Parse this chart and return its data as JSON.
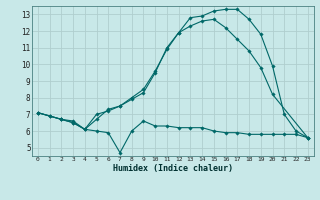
{
  "title": "",
  "xlabel": "Humidex (Indice chaleur)",
  "ylabel": "",
  "bg_color": "#c8e8e8",
  "grid_color": "#b0cece",
  "line_color": "#006868",
  "xlim": [
    -0.5,
    23.5
  ],
  "ylim": [
    4.5,
    13.5
  ],
  "xticks": [
    0,
    1,
    2,
    3,
    4,
    5,
    6,
    7,
    8,
    9,
    10,
    11,
    12,
    13,
    14,
    15,
    16,
    17,
    18,
    19,
    20,
    21,
    22,
    23
  ],
  "yticks": [
    5,
    6,
    7,
    8,
    9,
    10,
    11,
    12,
    13
  ],
  "line1_x": [
    0,
    1,
    2,
    3,
    4,
    5,
    6,
    7,
    8,
    9,
    10,
    11,
    12,
    13,
    14,
    15,
    16,
    17,
    18,
    19,
    20,
    21,
    22,
    23
  ],
  "line1_y": [
    7.1,
    6.9,
    6.7,
    6.6,
    6.1,
    6.0,
    5.9,
    4.7,
    6.0,
    6.6,
    6.3,
    6.3,
    6.2,
    6.2,
    6.2,
    6.0,
    5.9,
    5.9,
    5.8,
    5.8,
    5.8,
    5.8,
    5.8,
    5.6
  ],
  "line2_x": [
    0,
    1,
    2,
    3,
    4,
    5,
    6,
    7,
    8,
    9,
    10,
    11,
    12,
    13,
    14,
    15,
    16,
    17,
    18,
    19,
    20,
    21,
    22,
    23
  ],
  "line2_y": [
    7.1,
    6.9,
    6.7,
    6.5,
    6.1,
    6.7,
    7.3,
    7.5,
    8.0,
    8.5,
    9.6,
    10.9,
    11.9,
    12.8,
    12.9,
    13.2,
    13.3,
    13.3,
    12.7,
    11.8,
    9.9,
    7.0,
    6.0,
    5.6
  ],
  "line3_x": [
    0,
    2,
    3,
    4,
    5,
    6,
    7,
    8,
    9,
    10,
    11,
    12,
    13,
    14,
    15,
    16,
    17,
    18,
    19,
    20,
    23
  ],
  "line3_y": [
    7.1,
    6.7,
    6.5,
    6.1,
    7.0,
    7.2,
    7.5,
    7.9,
    8.3,
    9.5,
    11.0,
    11.9,
    12.3,
    12.6,
    12.7,
    12.2,
    11.5,
    10.8,
    9.8,
    8.2,
    5.6
  ]
}
